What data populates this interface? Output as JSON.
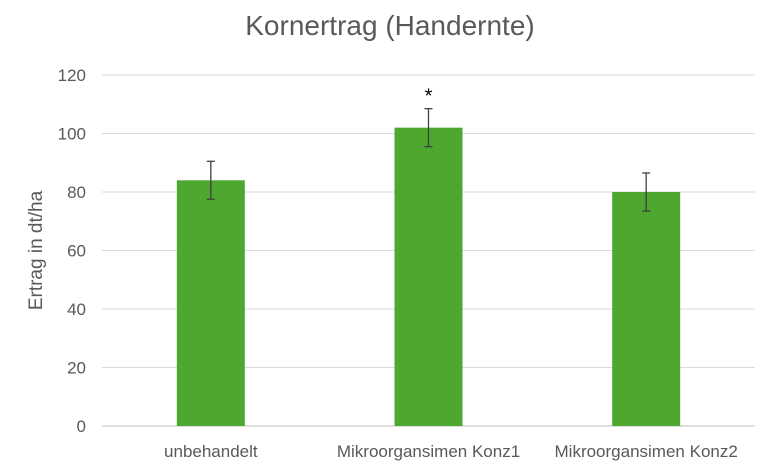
{
  "chart_data": {
    "type": "bar",
    "title": "Kornertrag (Handernte)",
    "xlabel": "",
    "ylabel": "Ertrag in dt/ha",
    "categories": [
      "unbehandelt",
      "Mikroorgansimen Konz1",
      "Mikroorgansimen Konz2"
    ],
    "series": [
      {
        "values": [
          84,
          102,
          80
        ],
        "error_low": [
          77.5,
          95.5,
          73.5
        ],
        "error_high": [
          90.5,
          108.5,
          86.5
        ]
      }
    ],
    "annotations": [
      "",
      "*",
      ""
    ],
    "ylim": [
      0,
      120
    ],
    "yticks": [
      0,
      20,
      40,
      60,
      80,
      100,
      120
    ],
    "grid": true,
    "legend": "none",
    "colors": {
      "bar": "#4ea72e",
      "grid": "#d9d9d9",
      "axis": "#bfbfbf",
      "text": "#595959",
      "error": "#404040"
    }
  }
}
